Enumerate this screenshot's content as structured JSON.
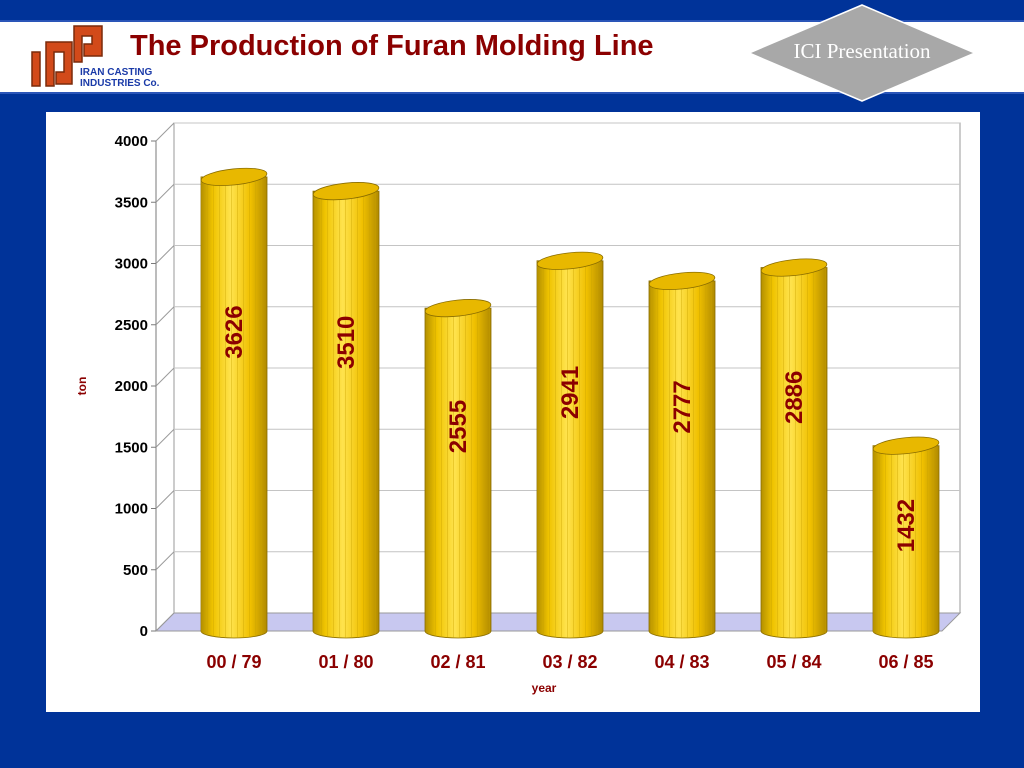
{
  "header": {
    "title": "The Production of Furan Molding Line",
    "company": "IRAN CASTING\nINDUSTRIES Co.",
    "badge": "ICI Presentation"
  },
  "colors": {
    "background": "#003399",
    "title": "#8b0000",
    "bar": "#f2c200",
    "badge": "#a8a8a8"
  },
  "icons": {
    "logo": "ici-logo-icon"
  },
  "chart_data": {
    "type": "bar",
    "categories": [
      "00 / 79",
      "01 / 80",
      "02 / 81",
      "03 / 82",
      "04 / 83",
      "05 / 84",
      "06 / 85"
    ],
    "values": [
      3626,
      3510,
      2555,
      2941,
      2777,
      2886,
      1432
    ],
    "xlabel": "year",
    "ylabel": "ton",
    "ylim": [
      0,
      4000
    ],
    "yticks": [
      0,
      500,
      1000,
      1500,
      2000,
      2500,
      3000,
      3500,
      4000
    ],
    "grid": true,
    "style": "3d-cylinder",
    "data_labels": true
  }
}
